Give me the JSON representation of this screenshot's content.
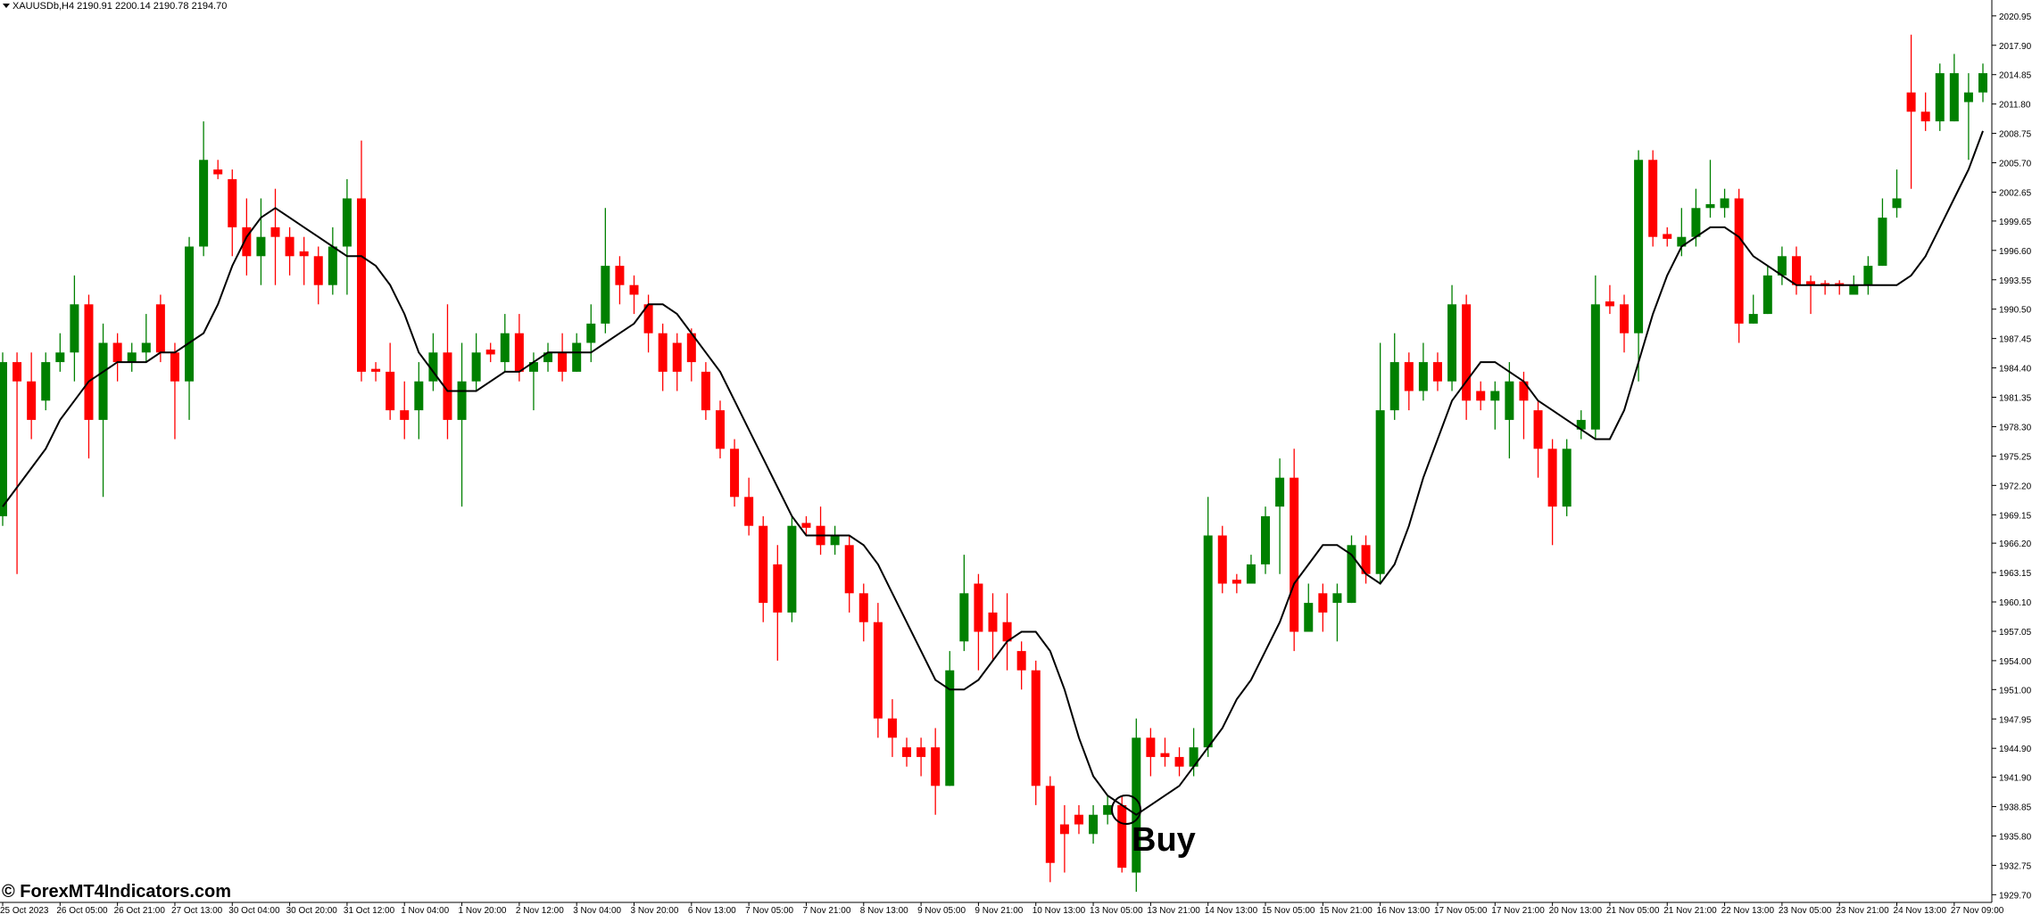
{
  "chart_data": {
    "type": "candlestick",
    "title": "XAUUSDb,H4  2190.91 2200.14 2190.78 2194.70",
    "annotation": "Buy",
    "up_color": "#008000",
    "down_color": "#ff0000",
    "line_color": "#000000",
    "ylim": [
      1928.9,
      2022.6
    ],
    "yticks": [
      2020.95,
      {
        "value": 2017.9,
        "label": "2017.90"
      },
      2014.85,
      {
        "value": 2011.8,
        "label": "2011.80"
      },
      2008.75,
      {
        "value": 2005.7,
        "label": "2005.70"
      },
      2002.65,
      1999.65,
      {
        "value": 1996.6,
        "label": "1996.60"
      },
      1993.55,
      {
        "value": 1990.5,
        "label": "1990.50"
      },
      1987.45,
      {
        "value": 1984.4,
        "label": "1984.40"
      },
      1981.35,
      {
        "value": 1978.3,
        "label": "1978.30"
      },
      1975.25,
      {
        "value": 1972.2,
        "label": "1972.20"
      },
      1969.15,
      {
        "value": 1966.2,
        "label": "1966.20"
      },
      1963.15,
      {
        "value": 1960.1,
        "label": "1960.10"
      },
      1957.05,
      {
        "value": 1954,
        "label": "1954.00"
      },
      {
        "value": 1951,
        "label": "1951.00"
      },
      1947.95,
      {
        "value": 1944.9,
        "label": "1944.90"
      },
      {
        "value": 1941.9,
        "label": "1941.90"
      },
      1938.85,
      {
        "value": 1935.8,
        "label": "1935.80"
      },
      1932.75,
      {
        "value": 1929.7,
        "label": "1929.70"
      }
    ],
    "xtick_labels": [
      "25 Oct 2023",
      "26 Oct 05:00",
      "26 Oct 21:00",
      "27 Oct 13:00",
      "30 Oct 04:00",
      "30 Oct 20:00",
      "31 Oct 12:00",
      "1 Nov 04:00",
      "1 Nov 20:00",
      "2 Nov 12:00",
      "3 Nov 04:00",
      "3 Nov 20:00",
      "6 Nov 13:00",
      "7 Nov 05:00",
      "7 Nov 21:00",
      "8 Nov 13:00",
      "9 Nov 05:00",
      "9 Nov 21:00",
      "10 Nov 13:00",
      "13 Nov 05:00",
      "13 Nov 21:00",
      "14 Nov 13:00",
      "15 Nov 05:00",
      "15 Nov 21:00",
      "16 Nov 13:00",
      "17 Nov 05:00",
      "17 Nov 21:00",
      "20 Nov 13:00",
      "21 Nov 05:00",
      "21 Nov 21:00",
      "22 Nov 13:00",
      "23 Nov 05:00",
      "23 Nov 21:00",
      "24 Nov 13:00",
      "27 Nov 09:00"
    ],
    "ohlc": [
      [
        1969,
        1986,
        1968,
        1985
      ],
      [
        1985,
        1986,
        1963,
        1983
      ],
      [
        1983,
        1986,
        1977,
        1979
      ],
      [
        1981,
        1986,
        1980,
        1985
      ],
      [
        1985,
        1988,
        1984,
        1986
      ],
      [
        1986,
        1994,
        1983,
        1991
      ],
      [
        1991,
        1992,
        1975,
        1979
      ],
      [
        1979,
        1989,
        1971,
        1987
      ],
      [
        1987,
        1988,
        1983,
        1985
      ],
      [
        1985,
        1987,
        1984,
        1986
      ],
      [
        1986,
        1990,
        1985,
        1987
      ],
      [
        1991,
        1992,
        1985,
        1986
      ],
      [
        1986,
        1987,
        1977,
        1983
      ],
      [
        1983,
        1998,
        1979,
        1997
      ],
      [
        1997,
        2010,
        1996,
        2006
      ],
      [
        2005,
        2006,
        2004,
        2004.5
      ],
      [
        2004,
        2005,
        1996,
        1999
      ],
      [
        1999,
        2002,
        1994,
        1996
      ],
      [
        1996,
        2002,
        1993,
        1998
      ],
      [
        1999,
        2003,
        1993,
        1998
      ],
      [
        1998,
        1999,
        1994,
        1996
      ],
      [
        1996.5,
        1998,
        1993,
        1996
      ],
      [
        1996,
        1997,
        1991,
        1993
      ],
      [
        1993,
        1999,
        1992,
        1997
      ],
      [
        1997,
        2004,
        1992,
        2002
      ],
      [
        2002,
        2008,
        1983,
        1984
      ],
      [
        1984.3,
        1985,
        1983,
        1984
      ],
      [
        1984,
        1987,
        1979,
        1980
      ],
      [
        1980,
        1983,
        1977,
        1979
      ],
      [
        1980,
        1985,
        1977,
        1983
      ],
      [
        1983,
        1988,
        1982,
        1986
      ],
      [
        1986,
        1991,
        1977,
        1979
      ],
      [
        1979,
        1987,
        1970,
        1983
      ],
      [
        1983,
        1988,
        1982,
        1986
      ],
      [
        1986.3,
        1987,
        1985,
        1985.8
      ],
      [
        1985,
        1990,
        1984,
        1988
      ],
      [
        1988,
        1990,
        1983,
        1984
      ],
      [
        1984,
        1986,
        1980,
        1985
      ],
      [
        1985,
        1987,
        1984,
        1986
      ],
      [
        1986,
        1988,
        1983,
        1984
      ],
      [
        1984,
        1988,
        1984,
        1987
      ],
      [
        1987,
        1991,
        1985,
        1989
      ],
      [
        1989,
        2001,
        1988,
        1995
      ],
      [
        1995,
        1996,
        1991,
        1993
      ],
      [
        1993,
        1994,
        1990,
        1992
      ],
      [
        1991,
        1992,
        1986,
        1988
      ],
      [
        1988,
        1989,
        1982,
        1984
      ],
      [
        1987,
        1988,
        1982,
        1984
      ],
      [
        1988,
        1988.5,
        1983,
        1985
      ],
      [
        1984,
        1985,
        1979,
        1980
      ],
      [
        1980,
        1981,
        1975,
        1976
      ],
      [
        1976,
        1977,
        1970,
        1971
      ],
      [
        1971,
        1973,
        1967,
        1968
      ],
      [
        1968,
        1969,
        1958,
        1960
      ],
      [
        1964,
        1966,
        1954,
        1959
      ],
      [
        1959,
        1969,
        1958,
        1968
      ],
      [
        1968.3,
        1969,
        1967,
        1967.8
      ],
      [
        1968,
        1970,
        1965,
        1966
      ],
      [
        1966,
        1968,
        1965,
        1967
      ],
      [
        1966,
        1967,
        1959,
        1961
      ],
      [
        1961,
        1962,
        1956,
        1958
      ],
      [
        1958,
        1960,
        1946,
        1948
      ],
      [
        1948,
        1950,
        1944,
        1946
      ],
      [
        1945,
        1946,
        1943,
        1944
      ],
      [
        1945,
        1946,
        1942,
        1944
      ],
      [
        1945,
        1947,
        1938,
        1941
      ],
      [
        1941,
        1955,
        1941,
        1953
      ],
      [
        1956,
        1965,
        1955,
        1961
      ],
      [
        1962,
        1963,
        1953,
        1957
      ],
      [
        1959,
        1961,
        1954,
        1957
      ],
      [
        1958,
        1961,
        1953,
        1956
      ],
      [
        1955,
        1956,
        1951,
        1953
      ],
      [
        1953,
        1954,
        1939,
        1941
      ],
      [
        1941,
        1942,
        1931,
        1933
      ],
      [
        1937,
        1939,
        1932,
        1936
      ],
      [
        1938,
        1939,
        1936,
        1937
      ],
      [
        1936,
        1939,
        1935,
        1938
      ],
      [
        1938,
        1940,
        1937,
        1939
      ],
      [
        1939,
        1940,
        1932,
        1932.5
      ],
      [
        1932,
        1948,
        1930,
        1946
      ],
      [
        1946,
        1947,
        1942,
        1944
      ],
      [
        1944.4,
        1946,
        1943,
        1944
      ],
      [
        1944,
        1945,
        1942,
        1943
      ],
      [
        1943,
        1947,
        1942,
        1945
      ],
      [
        1945,
        1971,
        1944,
        1967
      ],
      [
        1967,
        1968,
        1961,
        1962
      ],
      [
        1962.4,
        1963,
        1961,
        1962
      ],
      [
        1962,
        1965,
        1962,
        1964
      ],
      [
        1964,
        1970,
        1963,
        1969
      ],
      [
        1970,
        1975,
        1963,
        1973
      ],
      [
        1973,
        1976,
        1955,
        1957
      ],
      [
        1957,
        1962,
        1957,
        1960
      ],
      [
        1961,
        1962,
        1957,
        1959
      ],
      [
        1960,
        1962,
        1956,
        1961
      ],
      [
        1960,
        1967,
        1960,
        1966
      ],
      [
        1966,
        1967,
        1962,
        1963
      ],
      [
        1963,
        1987,
        1962,
        1980
      ],
      [
        1980,
        1988,
        1979,
        1985
      ],
      [
        1985,
        1986,
        1980,
        1982
      ],
      [
        1982,
        1987,
        1981,
        1985
      ],
      [
        1985,
        1986,
        1982,
        1983
      ],
      [
        1983,
        1993,
        1982,
        1991
      ],
      [
        1991,
        1992,
        1979,
        1981
      ],
      [
        1982,
        1983,
        1980,
        1981
      ],
      [
        1981,
        1983,
        1978,
        1982
      ],
      [
        1979,
        1985,
        1975,
        1983
      ],
      [
        1983,
        1984,
        1977,
        1981
      ],
      [
        1980,
        1981,
        1973,
        1976
      ],
      [
        1976,
        1977,
        1966,
        1970
      ],
      [
        1970,
        1977,
        1969,
        1976
      ],
      [
        1978,
        1980,
        1977,
        1979
      ],
      [
        1978,
        1994,
        1977,
        1991
      ],
      [
        1991.3,
        1993,
        1990,
        1990.8
      ],
      [
        1991,
        1992,
        1986,
        1988
      ],
      [
        1988,
        2007,
        1983,
        2006
      ],
      [
        2006,
        2007,
        1997,
        1998
      ],
      [
        1998.3,
        1999,
        1997,
        1997.8
      ],
      [
        1997,
        2001,
        1996,
        1998
      ],
      [
        1998,
        2003,
        1997,
        2001
      ],
      [
        2001,
        2006,
        2000,
        2001.4
      ],
      [
        2001,
        2003,
        2000,
        2002
      ],
      [
        2002,
        2003,
        1987,
        1989
      ],
      [
        1989,
        1992,
        1989,
        1990
      ],
      [
        1990,
        1995,
        1990,
        1994
      ],
      [
        1994,
        1997,
        1993,
        1996
      ],
      [
        1996,
        1997,
        1992,
        1993
      ],
      [
        1993.4,
        1994,
        1990,
        1993
      ],
      [
        1993.2,
        1993.5,
        1992,
        1992.9
      ],
      [
        1993.2,
        1993.5,
        1992,
        1992.9
      ],
      [
        1992,
        1994,
        1992,
        1993
      ],
      [
        1993,
        1996,
        1992,
        1995
      ],
      [
        1995,
        2002,
        1995,
        2000
      ],
      [
        2001,
        2005,
        2000,
        2002
      ],
      [
        2013,
        2019,
        2003,
        2011
      ],
      [
        2011,
        2013,
        2009,
        2010
      ],
      [
        2010,
        2016,
        2009,
        2015
      ],
      [
        2010,
        2017,
        2010,
        2015
      ],
      [
        2012,
        2015,
        2006,
        2013
      ],
      [
        2013,
        2016,
        2012,
        2015
      ]
    ],
    "ma": [
      1970,
      1972,
      1974,
      1976,
      1979,
      1981,
      1983,
      1984,
      1985,
      1985,
      1985,
      1986,
      1986,
      1987,
      1988,
      1991,
      1995,
      1998,
      2000,
      2001,
      2000,
      1999,
      1998,
      1997,
      1996,
      1996,
      1995,
      1993,
      1990,
      1986,
      1984,
      1982,
      1982,
      1982,
      1983,
      1984,
      1984,
      1985,
      1986,
      1986,
      1986,
      1986,
      1987,
      1988,
      1989,
      1991,
      1991,
      1990,
      1988,
      1986,
      1984,
      1981,
      1978,
      1975,
      1972,
      1969,
      1967,
      1967,
      1967,
      1967,
      1966,
      1964,
      1961,
      1958,
      1955,
      1952,
      1951,
      1951,
      1952,
      1954,
      1956,
      1957,
      1957,
      1955,
      1951,
      1946,
      1942,
      1940,
      1939,
      1938,
      1939,
      1940,
      1941,
      1943,
      1945,
      1947,
      1950,
      1952,
      1955,
      1958,
      1962,
      1964,
      1966,
      1966,
      1965,
      1963,
      1962,
      1964,
      1968,
      1973,
      1977,
      1981,
      1983,
      1985,
      1985,
      1984,
      1983,
      1981,
      1980,
      1979,
      1978,
      1977,
      1977,
      1980,
      1985,
      1990,
      1994,
      1997,
      1998,
      1999,
      1999,
      1998,
      1996,
      1995,
      1994,
      1993,
      1993,
      1993,
      1993,
      1993,
      1993,
      1993,
      1993,
      1994,
      1996,
      1999,
      2002,
      2005,
      2009
    ]
  },
  "watermark": "© ForexMT4Indicators.com"
}
